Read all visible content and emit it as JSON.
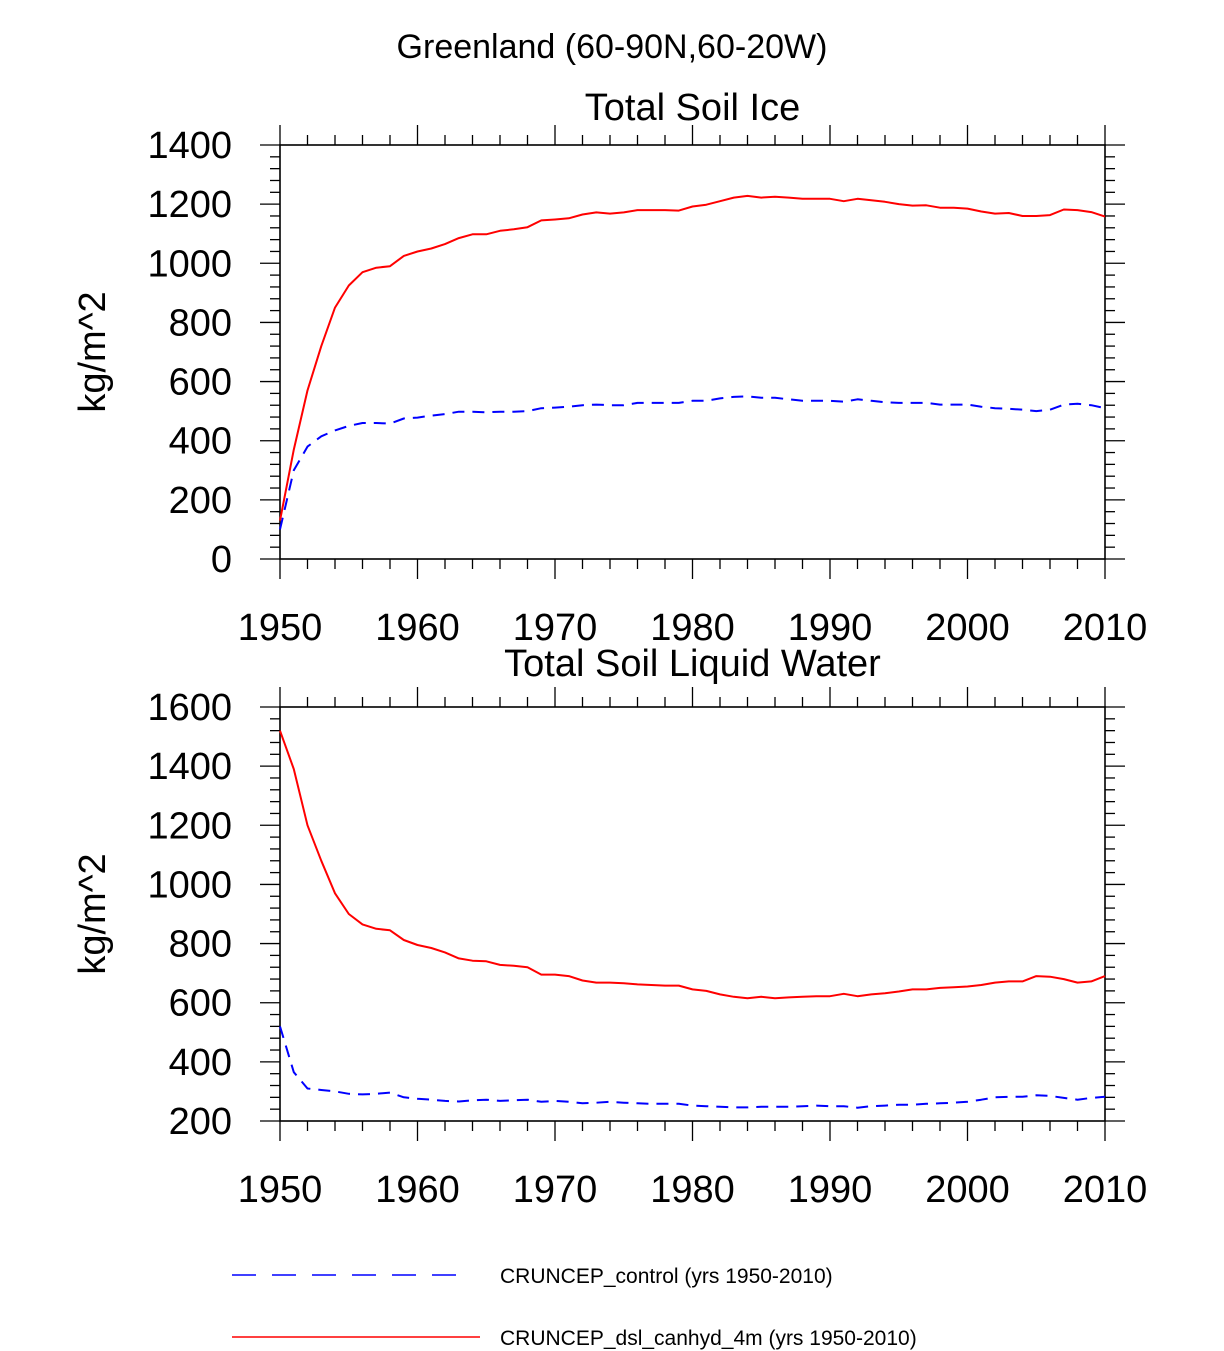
{
  "figure_title": "Greenland (60-90N,60-20W)",
  "colors": {
    "control": "#0000ff",
    "dsl": "#ff0000",
    "axis": "#000000"
  },
  "chart_data": [
    {
      "type": "line",
      "title": "Total Soil Ice",
      "xlabel": "",
      "ylabel": "kg/m^2",
      "xlim": [
        1950,
        2010
      ],
      "ylim": [
        0,
        1400
      ],
      "xticks": [
        1950,
        1960,
        1970,
        1980,
        1990,
        2000,
        2010
      ],
      "yticks": [
        0,
        200,
        400,
        600,
        800,
        1000,
        1200,
        1400
      ],
      "x": [
        1950,
        1951,
        1952,
        1953,
        1954,
        1955,
        1956,
        1957,
        1958,
        1959,
        1960,
        1961,
        1962,
        1963,
        1964,
        1965,
        1966,
        1967,
        1968,
        1969,
        1970,
        1971,
        1972,
        1973,
        1974,
        1975,
        1976,
        1977,
        1978,
        1979,
        1980,
        1981,
        1982,
        1983,
        1984,
        1985,
        1986,
        1987,
        1988,
        1989,
        1990,
        1991,
        1992,
        1993,
        1994,
        1995,
        1996,
        1997,
        1998,
        1999,
        2000,
        2001,
        2002,
        2003,
        2004,
        2005,
        2006,
        2007,
        2008,
        2009,
        2010
      ],
      "series": [
        {
          "name": "CRUNCEP_control (yrs 1950-2010)",
          "style": "dashed",
          "values": [
            100,
            300,
            380,
            415,
            435,
            450,
            460,
            460,
            458,
            475,
            478,
            485,
            490,
            498,
            498,
            496,
            498,
            498,
            500,
            510,
            512,
            515,
            520,
            522,
            520,
            520,
            528,
            528,
            528,
            528,
            535,
            535,
            543,
            548,
            550,
            545,
            545,
            540,
            535,
            535,
            535,
            532,
            540,
            535,
            530,
            528,
            528,
            528,
            522,
            522,
            522,
            515,
            510,
            508,
            505,
            500,
            505,
            522,
            525,
            520,
            510
          ]
        },
        {
          "name": "CRUNCEP_dsl_canhyd_4m (yrs 1950-2010)",
          "style": "solid",
          "values": [
            130,
            370,
            570,
            720,
            850,
            925,
            970,
            985,
            990,
            1025,
            1040,
            1050,
            1065,
            1085,
            1098,
            1098,
            1110,
            1115,
            1122,
            1145,
            1148,
            1152,
            1165,
            1172,
            1168,
            1172,
            1180,
            1180,
            1180,
            1178,
            1192,
            1198,
            1210,
            1222,
            1228,
            1222,
            1225,
            1222,
            1218,
            1218,
            1218,
            1210,
            1218,
            1213,
            1208,
            1200,
            1195,
            1196,
            1188,
            1188,
            1185,
            1175,
            1168,
            1170,
            1160,
            1160,
            1163,
            1182,
            1180,
            1173,
            1158
          ]
        }
      ]
    },
    {
      "type": "line",
      "title": "Total Soil Liquid Water",
      "xlabel": "",
      "ylabel": "kg/m^2",
      "xlim": [
        1950,
        2010
      ],
      "ylim": [
        200,
        1600
      ],
      "xticks": [
        1950,
        1960,
        1970,
        1980,
        1990,
        2000,
        2010
      ],
      "yticks": [
        200,
        400,
        600,
        800,
        1000,
        1200,
        1400,
        1600
      ],
      "x": [
        1950,
        1951,
        1952,
        1953,
        1954,
        1955,
        1956,
        1957,
        1958,
        1959,
        1960,
        1961,
        1962,
        1963,
        1964,
        1965,
        1966,
        1967,
        1968,
        1969,
        1970,
        1971,
        1972,
        1973,
        1974,
        1975,
        1976,
        1977,
        1978,
        1979,
        1980,
        1981,
        1982,
        1983,
        1984,
        1985,
        1986,
        1987,
        1988,
        1989,
        1990,
        1991,
        1992,
        1993,
        1994,
        1995,
        1996,
        1997,
        1998,
        1999,
        2000,
        2001,
        2002,
        2003,
        2004,
        2005,
        2006,
        2007,
        2008,
        2009,
        2010
      ],
      "series": [
        {
          "name": "CRUNCEP_control (yrs 1950-2010)",
          "style": "dashed",
          "values": [
            520,
            365,
            310,
            305,
            300,
            292,
            290,
            292,
            296,
            280,
            275,
            272,
            268,
            266,
            270,
            272,
            268,
            270,
            272,
            265,
            268,
            265,
            260,
            262,
            265,
            262,
            260,
            258,
            258,
            258,
            252,
            250,
            248,
            246,
            246,
            248,
            248,
            248,
            250,
            252,
            250,
            250,
            245,
            250,
            252,
            255,
            255,
            258,
            260,
            262,
            265,
            272,
            280,
            282,
            282,
            287,
            285,
            278,
            272,
            278,
            282
          ]
        },
        {
          "name": "CRUNCEP_dsl_canhyd_4m (yrs 1950-2010)",
          "style": "solid",
          "values": [
            1520,
            1390,
            1200,
            1080,
            970,
            900,
            865,
            850,
            845,
            812,
            795,
            785,
            770,
            750,
            742,
            740,
            728,
            725,
            720,
            695,
            695,
            690,
            675,
            668,
            668,
            666,
            662,
            660,
            658,
            658,
            645,
            640,
            628,
            620,
            615,
            620,
            615,
            618,
            620,
            622,
            622,
            630,
            622,
            628,
            632,
            638,
            645,
            645,
            650,
            652,
            655,
            660,
            668,
            672,
            672,
            690,
            688,
            680,
            668,
            672,
            690
          ]
        }
      ]
    }
  ],
  "legend": [
    {
      "label": "CRUNCEP_control (yrs 1950-2010)",
      "style": "dashed"
    },
    {
      "label": "CRUNCEP_dsl_canhyd_4m (yrs 1950-2010)",
      "style": "solid"
    }
  ]
}
